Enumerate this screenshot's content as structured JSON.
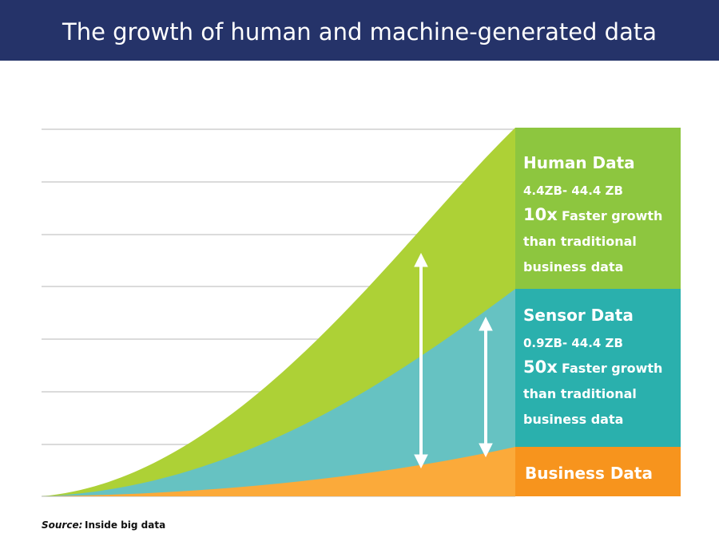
{
  "header": {
    "title": "The growth of human and machine-generated data"
  },
  "panels": [
    {
      "name": "Human Data",
      "range": "4.4ZB- 44.4 ZB",
      "multiplier": "10x",
      "lines": [
        "Faster growth",
        "than traditional",
        "business data"
      ]
    },
    {
      "name": "Sensor Data",
      "range": "0.9ZB- 44.4 ZB",
      "multiplier": "50x",
      "lines": [
        "Faster growth",
        "than traditional",
        "business data"
      ]
    },
    {
      "name": "Business Data"
    }
  ],
  "source": {
    "label": "Source:",
    "text": "Inside big data"
  }
}
